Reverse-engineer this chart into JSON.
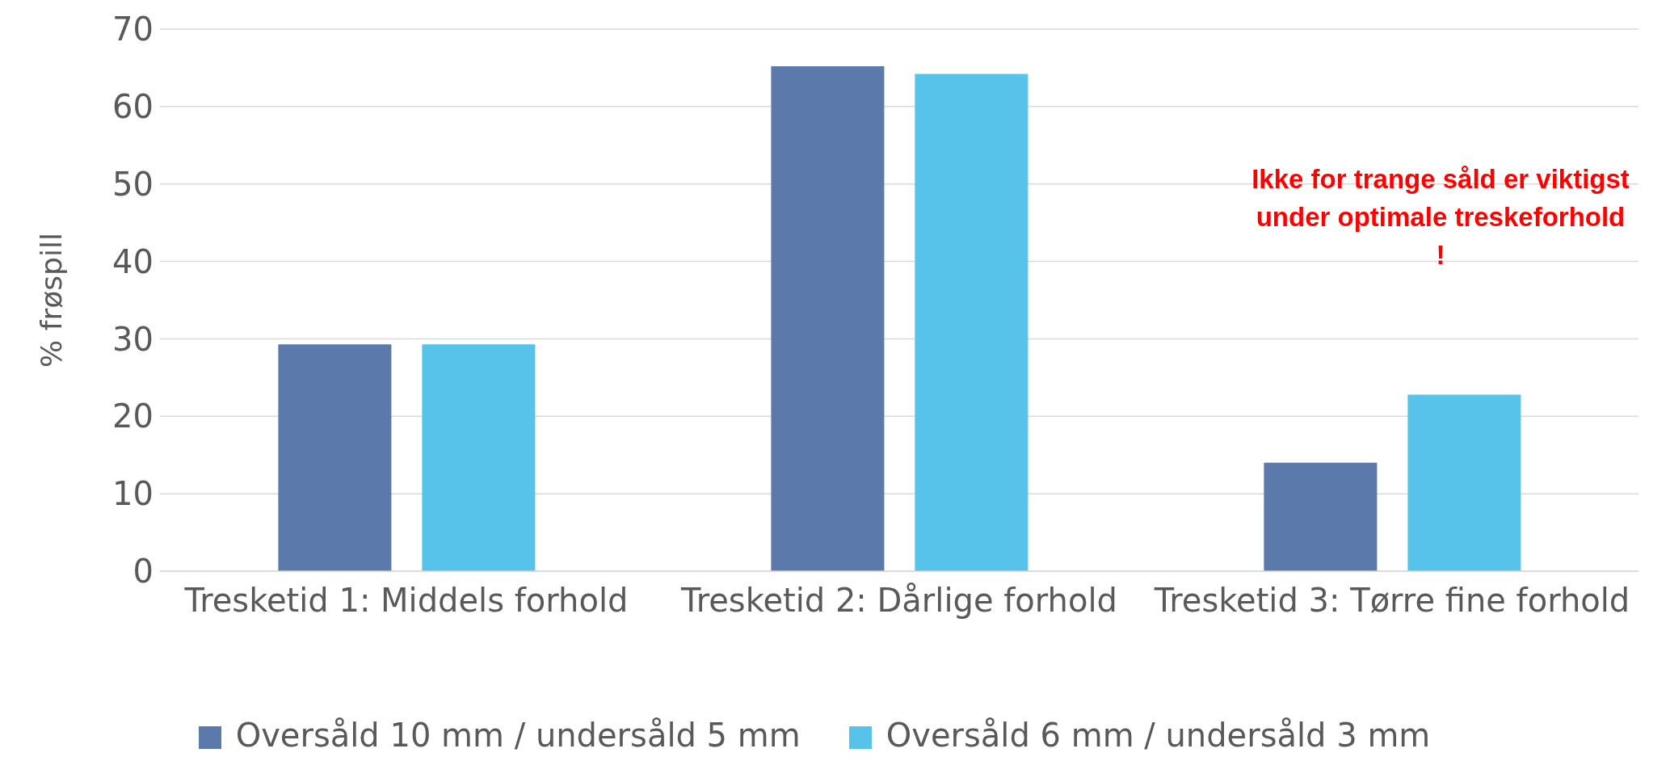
{
  "chart_data": {
    "type": "bar",
    "ylabel": "% frøspill",
    "categories": [
      "Tresketid 1: Middels forhold",
      "Tresketid 2: Dårlige forhold",
      "Tresketid 3: Tørre fine forhold"
    ],
    "series": [
      {
        "name": "Oversåld 10 mm / undersåld 5 mm",
        "color": "#5b79ab",
        "values": [
          29.3,
          65.2,
          14.0
        ]
      },
      {
        "name": "Oversåld 6 mm / undersåld 3 mm",
        "color": "#58c3ea",
        "values": [
          29.3,
          64.2,
          22.8
        ]
      }
    ],
    "ylim": [
      0,
      70
    ],
    "yticks": [
      0,
      10,
      20,
      30,
      40,
      50,
      60,
      70
    ],
    "grid": "y",
    "legend": "bottom",
    "annotations": [
      "Ikke for trange såld er viktigst under optimale treskeforhold !"
    ]
  }
}
